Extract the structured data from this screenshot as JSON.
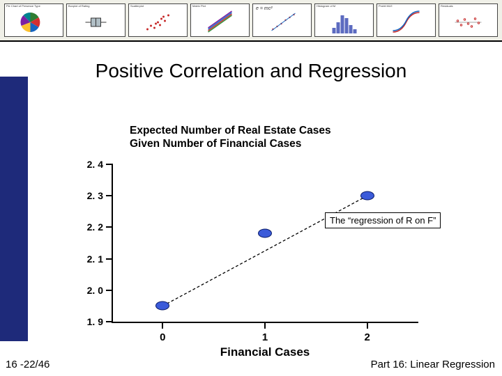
{
  "banner": {
    "bg": "#f0f0e8",
    "thumbs": [
      {
        "title": "Pie Chart of Presence Type"
      },
      {
        "title": "Boxplot of Rating"
      },
      {
        "title": "Scatterplot"
      },
      {
        "title": "Matrix Plot"
      },
      {
        "title": "e = mc²"
      },
      {
        "title": "Histogram of M"
      },
      {
        "title": "Probit MLE"
      },
      {
        "title": "Residuals"
      }
    ]
  },
  "slide": {
    "title": "Positive Correlation and Regression",
    "accent_color": "#1e2a7a",
    "chart": {
      "title_line1": "Expected Number of Real Estate Cases",
      "title_line2": "Given Number of Financial Cases",
      "title_fontsize": 15.5,
      "xlabel": "Financial Cases",
      "ylim": [
        1.9,
        2.4
      ],
      "yticks": [
        1.9,
        2.0,
        2.1,
        2.2,
        2.3,
        2.4
      ],
      "xlim": [
        -0.5,
        2.5
      ],
      "xticks": [
        0,
        1,
        2
      ],
      "points": [
        {
          "x": 0,
          "y": 1.95
        },
        {
          "x": 1,
          "y": 2.18
        },
        {
          "x": 2,
          "y": 2.3
        }
      ],
      "point_fill": "#3b5bd9",
      "point_stroke": "#091a66",
      "line_color": "#000000",
      "line_dash": "4,3",
      "callout": "The “regression of R on F”",
      "callout_box_color": "#000000"
    },
    "footer_left": "16 -22/46",
    "footer_right": "Part 16: Linear Regression"
  }
}
